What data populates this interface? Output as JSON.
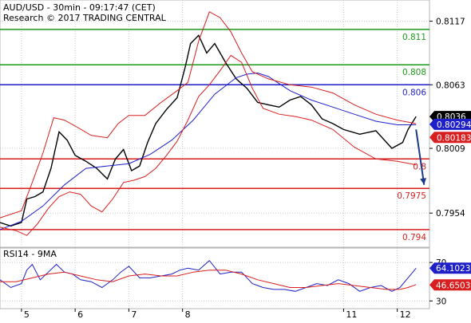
{
  "header": {
    "symbol_line": "AUD/USD - 30min - 09:17:47 (CET)",
    "credit_line": "Research © 2017 TRADING CENTRAL"
  },
  "chart_data": [
    {
      "type": "line",
      "title": "AUD/USD - 30min - 09:17:47 (CET)",
      "ylim": [
        0.7925,
        0.8135
      ],
      "y_ticks": [
        0.7954,
        0.8009,
        0.8063,
        0.8117
      ],
      "y_tick_labels": [
        "0.7954",
        "0.8009",
        "0.8063",
        "0.8117"
      ],
      "x_ticks": [
        5,
        6,
        7,
        8,
        11,
        12
      ],
      "x_tick_labels": [
        "5",
        "6",
        "7",
        "8",
        "11",
        "12"
      ],
      "x_range": [
        4.6,
        12.6
      ],
      "grid": true,
      "levels": [
        {
          "label": "0.811",
          "value": 0.811,
          "color": "#1a9a1a"
        },
        {
          "label": "0.808",
          "value": 0.808,
          "color": "#1a9a1a"
        },
        {
          "label": "0.806",
          "value": 0.8063,
          "color": "#1f1fc8"
        },
        {
          "label": "0.8",
          "value": 0.8,
          "color": "#d81e1e"
        },
        {
          "label": "0.7975",
          "value": 0.7975,
          "color": "#d81e1e"
        },
        {
          "label": "0.794",
          "value": 0.794,
          "color": "#d81e1e"
        }
      ],
      "price_markers": [
        {
          "label": "0.8036",
          "value": 0.8036,
          "color": "#000000"
        },
        {
          "label": "0.80294",
          "value": 0.80294,
          "color": "#1f1fc8"
        },
        {
          "label": "0.80183",
          "value": 0.80183,
          "color": "#d81e1e"
        }
      ],
      "forecast_arrow": {
        "from": [
          12.35,
          0.8025
        ],
        "to": [
          12.5,
          0.7978
        ],
        "color": "#1a3a8c"
      },
      "series": [
        {
          "role": "price",
          "color": "#000000",
          "x": [
            4.6,
            4.8,
            5.0,
            5.1,
            5.25,
            5.4,
            5.55,
            5.7,
            5.85,
            6.0,
            6.2,
            6.4,
            6.6,
            6.75,
            6.9,
            7.05,
            7.2,
            7.35,
            7.5,
            7.7,
            7.9,
            8.05,
            8.15,
            8.3,
            8.45,
            8.6,
            8.8,
            9.0,
            9.2,
            9.4,
            9.6,
            9.8,
            10.0,
            10.2,
            10.4,
            10.6,
            10.8,
            11.0,
            11.3,
            11.6,
            11.9,
            12.1,
            12.2,
            12.35
          ],
          "values": [
            0.7946,
            0.7943,
            0.7946,
            0.7966,
            0.7968,
            0.7972,
            0.7992,
            0.8023,
            0.8016,
            0.8003,
            0.7998,
            0.7992,
            0.7983,
            0.8,
            0.8008,
            0.799,
            0.7994,
            0.8014,
            0.803,
            0.8042,
            0.8052,
            0.8078,
            0.8098,
            0.8105,
            0.809,
            0.8098,
            0.8082,
            0.8068,
            0.806,
            0.8048,
            0.8046,
            0.8044,
            0.805,
            0.8053,
            0.8046,
            0.8034,
            0.803,
            0.8025,
            0.8021,
            0.8024,
            0.8009,
            0.8014,
            0.8025,
            0.8036
          ]
        },
        {
          "role": "moving-average",
          "color": "#1f1fc8",
          "x": [
            4.6,
            5.0,
            5.4,
            5.8,
            6.2,
            6.6,
            7.0,
            7.4,
            7.8,
            8.2,
            8.6,
            9.0,
            9.2,
            9.4,
            9.6,
            9.8,
            10.0,
            10.4,
            10.8,
            11.2,
            11.6,
            12.0,
            12.35
          ],
          "values": [
            0.794,
            0.7947,
            0.796,
            0.7978,
            0.7992,
            0.7994,
            0.7996,
            0.8004,
            0.8016,
            0.8033,
            0.8055,
            0.8069,
            0.8072,
            0.8073,
            0.807,
            0.8064,
            0.8058,
            0.805,
            0.8044,
            0.8038,
            0.8032,
            0.8029,
            0.8029
          ]
        },
        {
          "role": "upper-band",
          "color": "#d81e1e",
          "x": [
            4.6,
            5.0,
            5.2,
            5.4,
            5.6,
            5.8,
            6.0,
            6.3,
            6.6,
            6.8,
            7.0,
            7.3,
            7.6,
            7.9,
            8.1,
            8.3,
            8.5,
            8.7,
            8.9,
            9.1,
            9.3,
            9.6,
            10.0,
            10.4,
            10.8,
            11.2,
            11.6,
            12.0,
            12.35
          ],
          "values": [
            0.795,
            0.7956,
            0.798,
            0.8005,
            0.8035,
            0.8033,
            0.8028,
            0.802,
            0.8018,
            0.803,
            0.8037,
            0.8037,
            0.8048,
            0.8058,
            0.8065,
            0.81,
            0.8125,
            0.812,
            0.8108,
            0.809,
            0.8074,
            0.8068,
            0.8063,
            0.8061,
            0.8056,
            0.8046,
            0.8038,
            0.8033,
            0.803
          ]
        },
        {
          "role": "lower-band",
          "color": "#d81e1e",
          "x": [
            4.6,
            4.9,
            5.1,
            5.3,
            5.5,
            5.7,
            5.9,
            6.1,
            6.3,
            6.5,
            6.7,
            6.9,
            7.1,
            7.3,
            7.5,
            7.7,
            7.9,
            8.1,
            8.3,
            8.5,
            8.7,
            8.9,
            9.1,
            9.3,
            9.5,
            9.8,
            10.1,
            10.4,
            10.8,
            11.2,
            11.6,
            12.0,
            12.35
          ],
          "values": [
            0.7942,
            0.7939,
            0.7935,
            0.7945,
            0.7958,
            0.7968,
            0.7972,
            0.797,
            0.796,
            0.7955,
            0.7966,
            0.798,
            0.7982,
            0.7985,
            0.7992,
            0.8003,
            0.8015,
            0.8033,
            0.8053,
            0.8063,
            0.8075,
            0.8088,
            0.8082,
            0.806,
            0.8043,
            0.8038,
            0.8036,
            0.8033,
            0.8025,
            0.801,
            0.8,
            0.7998,
            0.7995
          ]
        }
      ]
    },
    {
      "type": "line",
      "title": "RSI14 - 9MA",
      "ylim": [
        22,
        85
      ],
      "y_ticks": [
        30,
        70
      ],
      "y_tick_labels": [
        "30",
        "70"
      ],
      "x_range": [
        4.6,
        12.6
      ],
      "grid": true,
      "markers": [
        {
          "label": "64.1023",
          "value": 64.1023,
          "color": "#1f1fc8"
        },
        {
          "label": "46.6503",
          "value": 46.6503,
          "color": "#d81e1e"
        }
      ],
      "series": [
        {
          "role": "rsi",
          "color": "#1f1fc8",
          "x": [
            4.6,
            4.8,
            5.0,
            5.1,
            5.2,
            5.35,
            5.5,
            5.65,
            5.8,
            5.95,
            6.1,
            6.3,
            6.5,
            6.7,
            6.85,
            7.0,
            7.2,
            7.4,
            7.6,
            7.8,
            7.95,
            8.1,
            8.3,
            8.5,
            8.7,
            8.9,
            9.1,
            9.3,
            9.5,
            9.7,
            9.9,
            10.1,
            10.3,
            10.5,
            10.7,
            10.9,
            11.1,
            11.3,
            11.5,
            11.7,
            11.9,
            12.05,
            12.2,
            12.35
          ],
          "values": [
            52,
            44,
            48,
            62,
            68,
            52,
            60,
            68,
            60,
            58,
            52,
            50,
            44,
            52,
            60,
            66,
            54,
            54,
            56,
            58,
            62,
            64,
            62,
            72,
            58,
            60,
            60,
            48,
            44,
            42,
            42,
            40,
            44,
            48,
            46,
            52,
            48,
            40,
            44,
            46,
            40,
            44,
            54,
            64
          ]
        },
        {
          "role": "rsi-ma",
          "color": "#d81e1e",
          "x": [
            4.6,
            4.9,
            5.2,
            5.5,
            5.8,
            6.1,
            6.4,
            6.7,
            7.0,
            7.3,
            7.6,
            7.9,
            8.2,
            8.5,
            8.8,
            9.1,
            9.4,
            9.7,
            10.0,
            10.3,
            10.6,
            10.9,
            11.2,
            11.5,
            11.8,
            12.05,
            12.2,
            12.35
          ],
          "values": [
            50,
            50,
            54,
            58,
            60,
            56,
            52,
            50,
            56,
            58,
            56,
            56,
            60,
            62,
            62,
            58,
            52,
            48,
            44,
            44,
            46,
            48,
            46,
            44,
            42,
            42,
            44,
            47
          ]
        }
      ]
    }
  ]
}
